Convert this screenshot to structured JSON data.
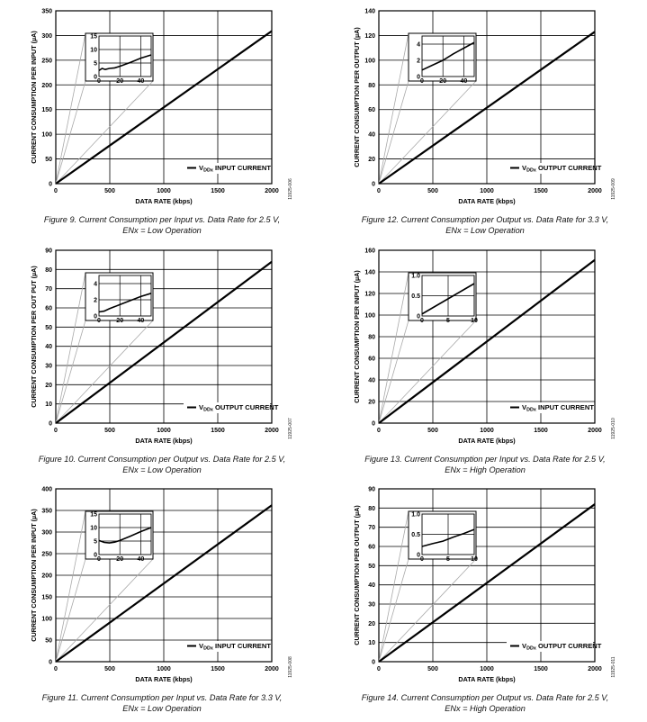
{
  "chart_data": [
    {
      "figure": "Figure 9. Current Consumption per Input vs. Data Rate for 2.5 V,",
      "figure_line2": "ENx = Low Operation",
      "type": "line",
      "xlabel": "DATA RATE (kbps)",
      "ylabel": "CURRENT CONSUMPTION PER INPUT (µA)",
      "xlim": [
        0,
        2000
      ],
      "ylim": [
        0,
        350
      ],
      "xticks": [
        "0",
        "500",
        "1000",
        "1500",
        "2000"
      ],
      "yticks": [
        "0",
        "50",
        "100",
        "150",
        "200",
        "250",
        "300",
        "350"
      ],
      "grid": true,
      "legend": "top-right-lower",
      "legend_label": "VDDx INPUT CURRENT",
      "legend_main": "V",
      "legend_sub": "DDx",
      "legend_rest": " INPUT CURRENT",
      "series": [
        {
          "x": [
            0,
            2000
          ],
          "y": [
            0,
            309
          ]
        }
      ],
      "inset": {
        "xlim": [
          0,
          50
        ],
        "ylim": [
          0,
          15
        ],
        "xticks": [
          "0",
          "20",
          "40"
        ],
        "yticks": [
          "0",
          "5",
          "10",
          "15"
        ],
        "series": [
          {
            "x": [
              0,
              3,
              6,
              10,
              15,
              20,
              30,
              40,
              50
            ],
            "y": [
              2.2,
              3.0,
              2.6,
              3.0,
              3.2,
              3.8,
              5.2,
              6.8,
              8.0
            ]
          }
        ]
      },
      "figure_code": "11925-006"
    },
    {
      "figure": "Figure 12. Current Consumption per Output vs. Data Rate for 3.3 V,",
      "figure_line2": "ENx = Low Operation",
      "type": "line",
      "xlabel": "DATA RATE (kbps)",
      "ylabel": "CURRENT CONSUMPTION PER OUTPUT (µA)",
      "xlim": [
        0,
        2000
      ],
      "ylim": [
        0,
        140
      ],
      "xticks": [
        "0",
        "500",
        "1000",
        "1500",
        "2000"
      ],
      "yticks": [
        "0",
        "20",
        "40",
        "60",
        "80",
        "100",
        "120",
        "140"
      ],
      "grid": true,
      "legend": "top-right-lower",
      "legend_label": "VDDx OUTPUT CURRENT",
      "legend_main": "V",
      "legend_sub": "DDx",
      "legend_rest": " OUTPUT CURRENT",
      "series": [
        {
          "x": [
            0,
            2000
          ],
          "y": [
            0,
            123
          ]
        }
      ],
      "inset": {
        "xlim": [
          0,
          50
        ],
        "ylim": [
          0,
          5
        ],
        "xticks": [
          "0",
          "20",
          "40"
        ],
        "yticks": [
          "0",
          "2",
          "4"
        ],
        "series": [
          {
            "x": [
              0,
              10,
              20,
              30,
              40,
              50
            ],
            "y": [
              0.8,
              1.4,
              2.0,
              2.8,
              3.5,
              4.2
            ]
          }
        ]
      },
      "figure_code": "11925-009"
    },
    {
      "figure": "Figure 10. Current Consumption per Output vs. Data Rate for 2.5 V,",
      "figure_line2": "ENx = Low Operation",
      "type": "line",
      "xlabel": "DATA RATE (kbps)",
      "ylabel": "CURRENT CONSUMPTION PER OUT PUT (µA)",
      "xlim": [
        0,
        2000
      ],
      "ylim": [
        0,
        90
      ],
      "xticks": [
        "0",
        "500",
        "1000",
        "1500",
        "2000"
      ],
      "yticks": [
        "0",
        "10",
        "20",
        "30",
        "40",
        "50",
        "60",
        "70",
        "80",
        "90"
      ],
      "grid": true,
      "legend": "top-right-lower",
      "legend_label": "VDDx OUTPUT CURRENT",
      "legend_main": "V",
      "legend_sub": "DDx",
      "legend_rest": " OUTPUT CURRENT",
      "series": [
        {
          "x": [
            0,
            2000
          ],
          "y": [
            0,
            84
          ]
        }
      ],
      "inset": {
        "xlim": [
          0,
          50
        ],
        "ylim": [
          0,
          5
        ],
        "xticks": [
          "0",
          "20",
          "40"
        ],
        "yticks": [
          "0",
          "2",
          "4"
        ],
        "series": [
          {
            "x": [
              0,
              5,
              10,
              20,
              30,
              40,
              50
            ],
            "y": [
              0.5,
              0.6,
              0.9,
              1.4,
              1.9,
              2.4,
              2.8
            ]
          }
        ]
      },
      "figure_code": "11925-007"
    },
    {
      "figure": "Figure 13. Current Consumption per Input vs. Data Rate for 2.5 V,",
      "figure_line2": "ENx = High Operation",
      "type": "line",
      "xlabel": "DATA RATE (kbps)",
      "ylabel": "CURRENT CONSUMPTION PER INPUT (µA)",
      "xlim": [
        0,
        2000
      ],
      "ylim": [
        0,
        160
      ],
      "xticks": [
        "0",
        "500",
        "1000",
        "1500",
        "2000"
      ],
      "yticks": [
        "0",
        "20",
        "40",
        "60",
        "80",
        "100",
        "120",
        "140",
        "160"
      ],
      "grid": true,
      "legend": "top-right-lower",
      "legend_label": "VDDx INPUT CURRENT",
      "legend_main": "V",
      "legend_sub": "DDx",
      "legend_rest": " INPUT CURRENT",
      "series": [
        {
          "x": [
            0,
            2000
          ],
          "y": [
            0,
            151
          ]
        }
      ],
      "inset": {
        "xlim": [
          0,
          10
        ],
        "ylim": [
          0,
          1.0
        ],
        "xticks": [
          "0",
          "5",
          "10"
        ],
        "yticks": [
          "0",
          "0.5",
          "1.0"
        ],
        "series": [
          {
            "x": [
              0,
              2,
              4,
              6,
              8,
              10
            ],
            "y": [
              0.05,
              0.2,
              0.35,
              0.5,
              0.65,
              0.8
            ]
          }
        ]
      },
      "figure_code": "11925-010"
    },
    {
      "figure": "Figure 11. Current Consumption per Input vs. Data Rate for 3.3 V,",
      "figure_line2": "ENx = Low Operation",
      "type": "line",
      "xlabel": "DATA RATE (kbps)",
      "ylabel": "CURRENT CONSUMPTION PER INPUT (µA)",
      "xlim": [
        0,
        2000
      ],
      "ylim": [
        0,
        400
      ],
      "xticks": [
        "0",
        "500",
        "1000",
        "1500",
        "2000"
      ],
      "yticks": [
        "0",
        "50",
        "100",
        "150",
        "200",
        "250",
        "300",
        "350",
        "400"
      ],
      "grid": true,
      "legend": "top-right-lower",
      "legend_label": "VDDx INPUT CURRENT",
      "legend_main": "V",
      "legend_sub": "DDx",
      "legend_rest": " INPUT CURRENT",
      "series": [
        {
          "x": [
            0,
            2000
          ],
          "y": [
            0,
            362
          ]
        }
      ],
      "inset": {
        "xlim": [
          0,
          50
        ],
        "ylim": [
          0,
          15
        ],
        "xticks": [
          "0",
          "20",
          "40"
        ],
        "yticks": [
          "0",
          "5",
          "10",
          "15"
        ],
        "series": [
          {
            "x": [
              0,
              5,
              10,
              15,
              20,
              30,
              40,
              50
            ],
            "y": [
              5.2,
              4.5,
              4.3,
              4.6,
              5.2,
              6.8,
              8.5,
              10.0
            ]
          }
        ]
      },
      "figure_code": "11925-008"
    },
    {
      "figure": "Figure 14. Current Consumption per Output vs. Data Rate for 2.5 V,",
      "figure_line2": "ENx = High Operation",
      "type": "line",
      "xlabel": "DATA RATE (kbps)",
      "ylabel": "CURRENT CONSUMPTION PER OUTPUT (µA)",
      "xlim": [
        0,
        2000
      ],
      "ylim": [
        0,
        90
      ],
      "xticks": [
        "0",
        "500",
        "1000",
        "1500",
        "2000"
      ],
      "yticks": [
        "0",
        "10",
        "20",
        "30",
        "40",
        "50",
        "60",
        "70",
        "80",
        "90"
      ],
      "grid": true,
      "legend": "top-right-lower",
      "legend_label": "VDDx OUTPUT CURRENT",
      "legend_main": "V",
      "legend_sub": "DDx",
      "legend_rest": " OUTPUT CURRENT",
      "series": [
        {
          "x": [
            0,
            2000
          ],
          "y": [
            0,
            82
          ]
        }
      ],
      "inset": {
        "xlim": [
          0,
          10
        ],
        "ylim": [
          0,
          1.0
        ],
        "xticks": [
          "0",
          "5",
          "10"
        ],
        "yticks": [
          "0",
          "0.5",
          "1.0"
        ],
        "series": [
          {
            "x": [
              0,
              2,
              4,
              6,
              8,
              10
            ],
            "y": [
              0.2,
              0.27,
              0.33,
              0.43,
              0.52,
              0.62
            ]
          }
        ]
      },
      "figure_code": "11925-011"
    }
  ]
}
